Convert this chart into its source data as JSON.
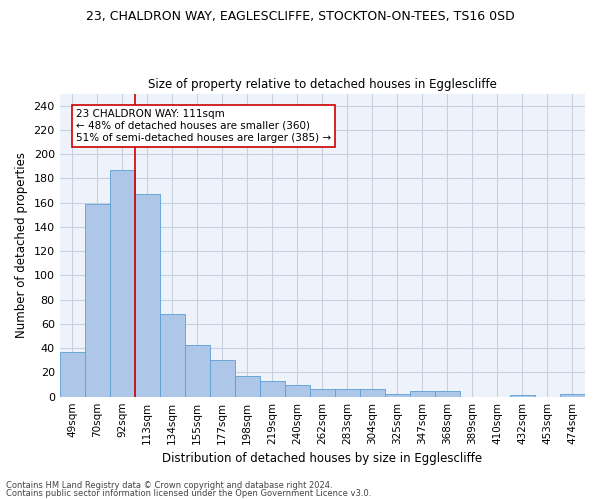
{
  "title1": "23, CHALDRON WAY, EAGLESCLIFFE, STOCKTON-ON-TEES, TS16 0SD",
  "title2": "Size of property relative to detached houses in Egglescliffe",
  "xlabel": "Distribution of detached houses by size in Egglescliffe",
  "ylabel": "Number of detached properties",
  "categories": [
    "49sqm",
    "70sqm",
    "92sqm",
    "113sqm",
    "134sqm",
    "155sqm",
    "177sqm",
    "198sqm",
    "219sqm",
    "240sqm",
    "262sqm",
    "283sqm",
    "304sqm",
    "325sqm",
    "347sqm",
    "368sqm",
    "389sqm",
    "410sqm",
    "432sqm",
    "453sqm",
    "474sqm"
  ],
  "values": [
    37,
    159,
    187,
    167,
    68,
    43,
    30,
    17,
    13,
    10,
    6,
    6,
    6,
    2,
    5,
    5,
    0,
    0,
    1,
    0,
    2
  ],
  "bar_color": "#aec6e8",
  "bar_edge_color": "#5a9fd4",
  "vline_x": 2.5,
  "vline_color": "#cc0000",
  "annotation_line1": "23 CHALDRON WAY: 111sqm",
  "annotation_line2": "← 48% of detached houses are smaller (360)",
  "annotation_line3": "51% of semi-detached houses are larger (385) →",
  "annotation_box_color": "#ffffff",
  "annotation_box_edge": "#cc0000",
  "ylim": [
    0,
    250
  ],
  "yticks": [
    0,
    20,
    40,
    60,
    80,
    100,
    120,
    140,
    160,
    180,
    200,
    220,
    240
  ],
  "grid_color": "#c8d0e0",
  "background_color": "#eef2fb",
  "footer1": "Contains HM Land Registry data © Crown copyright and database right 2024.",
  "footer2": "Contains public sector information licensed under the Open Government Licence v3.0."
}
